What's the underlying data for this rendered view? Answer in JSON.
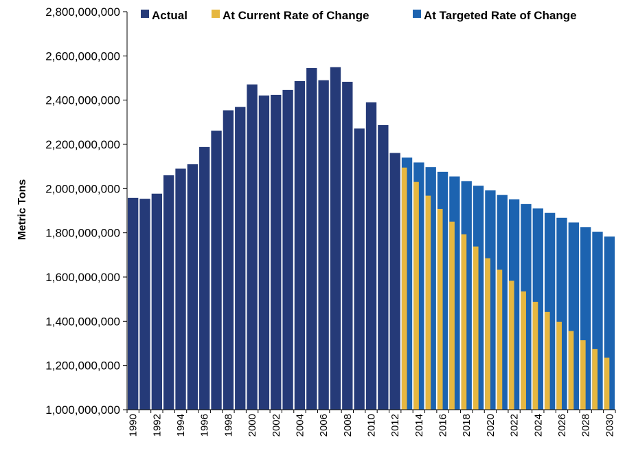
{
  "chart_data": {
    "type": "bar",
    "title": "",
    "xlabel": "",
    "ylabel": "Metric Tons",
    "ylim": [
      1000000000,
      2800000000
    ],
    "y_ticks": [
      "1,000,000,000",
      "1,200,000,000",
      "1,400,000,000",
      "1,600,000,000",
      "1,800,000,000",
      "2,000,000,000",
      "2,200,000,000",
      "2,400,000,000",
      "2,600,000,000",
      "2,800,000,000"
    ],
    "y_tick_values": [
      1000000000,
      1200000000,
      1400000000,
      1600000000,
      1800000000,
      2000000000,
      2200000000,
      2400000000,
      2600000000,
      2800000000
    ],
    "x_tick_labels": [
      "1990",
      "1992",
      "1994",
      "1996",
      "1998",
      "2000",
      "2002",
      "2004",
      "2006",
      "2008",
      "2010",
      "2012",
      "2014",
      "2016",
      "2018",
      "2020",
      "2022",
      "2024",
      "2026",
      "2028",
      "2030"
    ],
    "legend_position": "top",
    "grid": false,
    "colors": {
      "actual": "#253a78",
      "current": "#e6b740",
      "targeted": "#1c63b0"
    },
    "series": [
      {
        "name": "Actual",
        "x": [
          1990,
          1991,
          1992,
          1993,
          1994,
          1995,
          1996,
          1997,
          1998,
          1999,
          2000,
          2001,
          2002,
          2003,
          2004,
          2005,
          2006,
          2007,
          2008,
          2009,
          2010,
          2011,
          2012
        ],
        "values": [
          1958000000,
          1954000000,
          1977000000,
          2060000000,
          2090000000,
          2110000000,
          2188000000,
          2262000000,
          2354000000,
          2369000000,
          2471000000,
          2421000000,
          2424000000,
          2446000000,
          2486000000,
          2545000000,
          2490000000,
          2549000000,
          2483000000,
          2272000000,
          2390000000,
          2287000000,
          2161000000
        ]
      },
      {
        "name": "At Current Rate of Change",
        "x": [
          2013,
          2014,
          2015,
          2016,
          2017,
          2018,
          2019,
          2020,
          2021,
          2022,
          2023,
          2024,
          2025,
          2026,
          2027,
          2028,
          2029,
          2030
        ],
        "values": [
          2095000000,
          2030000000,
          1968000000,
          1908000000,
          1850000000,
          1793000000,
          1738000000,
          1685000000,
          1633000000,
          1583000000,
          1535000000,
          1488000000,
          1442000000,
          1398000000,
          1356000000,
          1314000000,
          1274000000,
          1235000000
        ]
      },
      {
        "name": "At Targeted Rate of Change",
        "x": [
          2013,
          2014,
          2015,
          2016,
          2017,
          2018,
          2019,
          2020,
          2021,
          2022,
          2023,
          2024,
          2025,
          2026,
          2027,
          2028,
          2029,
          2030
        ],
        "values": [
          2140000000,
          2118000000,
          2097000000,
          2076000000,
          2055000000,
          2034000000,
          2013000000,
          1992000000,
          1971000000,
          1951000000,
          1930000000,
          1910000000,
          1890000000,
          1868000000,
          1847000000,
          1826000000,
          1805000000,
          1783000000
        ]
      }
    ]
  }
}
